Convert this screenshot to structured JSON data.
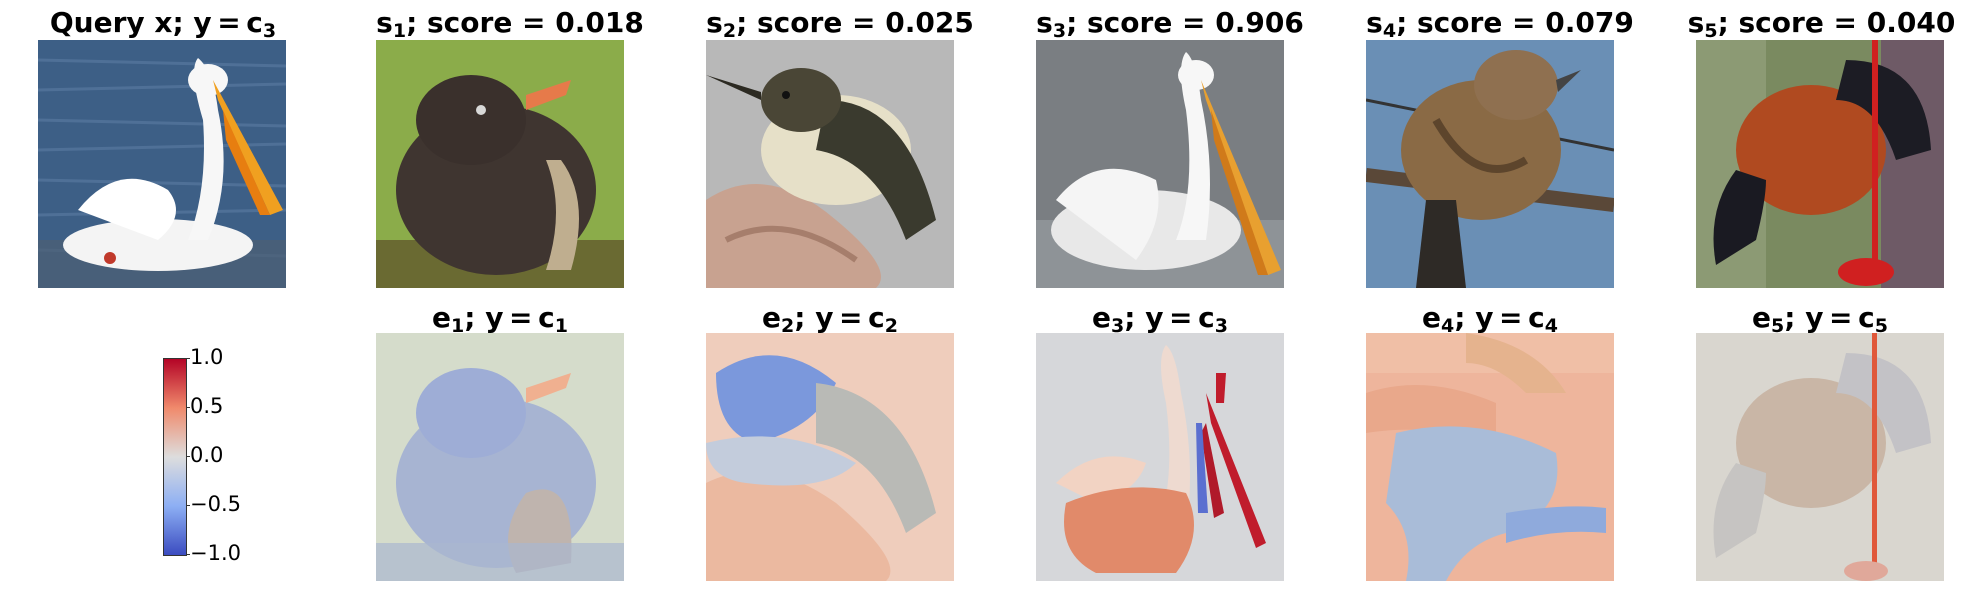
{
  "top_row": [
    {
      "pre": "Query x; y = c",
      "sub": "3",
      "post": ""
    },
    {
      "pre": "s",
      "sub": "1",
      "post": "; score = 0.018"
    },
    {
      "pre": "s",
      "sub": "2",
      "post": "; score = 0.025"
    },
    {
      "pre": "s",
      "sub": "3",
      "post": "; score = 0.906"
    },
    {
      "pre": "s",
      "sub": "4",
      "post": "; score = 0.079"
    },
    {
      "pre": "s",
      "sub": "5",
      "post": "; score = 0.040"
    }
  ],
  "bottom_row": [
    {
      "pre": "e",
      "sub": "1",
      "mid": "; y = c",
      "sub2": "1"
    },
    {
      "pre": "e",
      "sub": "2",
      "mid": "; y = c",
      "sub2": "2"
    },
    {
      "pre": "e",
      "sub": "3",
      "mid": "; y = c",
      "sub2": "3"
    },
    {
      "pre": "e",
      "sub": "4",
      "mid": "; y = c",
      "sub2": "4"
    },
    {
      "pre": "e",
      "sub": "5",
      "mid": "; y = c",
      "sub2": "5"
    }
  ],
  "colorbar": {
    "ticks": [
      "1.0",
      "0.5",
      "0.0",
      "−0.5",
      "−1.0"
    ],
    "colors": {
      "high": "#b40426",
      "mid": "#dddddd",
      "low": "#3b4cc0"
    }
  }
}
